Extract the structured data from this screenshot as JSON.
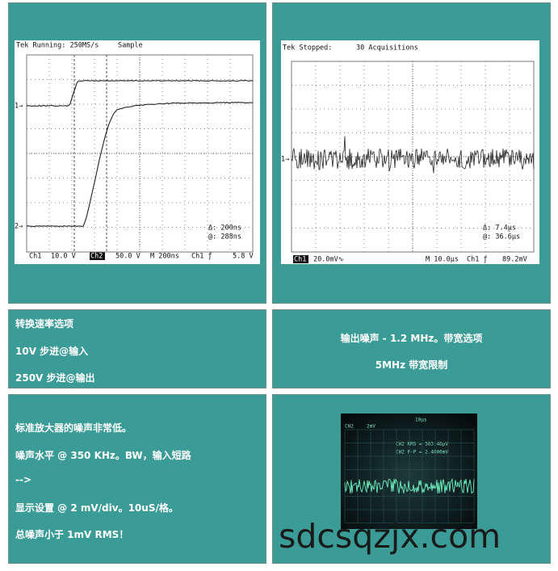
{
  "scope_left": {
    "header": "Tek Running: 250MS/s",
    "mode": "Sample",
    "ch1_marker": "1→",
    "ch2_marker": "2→",
    "delta": "Δ: 200ns",
    "at": "@: 288ns",
    "readout": [
      "Ch1",
      "10.0 V",
      "Ch2",
      "50.0 V",
      "M 200ns",
      "Ch1 ƒ",
      "5.8 V"
    ]
  },
  "scope_right": {
    "header": "Tek Stopped:",
    "acquisitions": "30 Acquisitions",
    "ch1_marker": "1→",
    "delta": "Δ: 7.4µs",
    "at": "@: 36.6µs",
    "readout": [
      "Ch1",
      "20.0mV∿",
      "M 10.0µs",
      "Ch1 ƒ",
      "89.2mV"
    ]
  },
  "slew_rate": {
    "title": "转换速率选项",
    "lines": [
      "10V 步进@输入",
      "250V 步进@输出"
    ]
  },
  "noise_output": {
    "lines": [
      "输出噪声 - 1.2 MHz。带宽选项",
      "5MHz 带宽限制"
    ]
  },
  "noise_amp": {
    "lines": [
      "标准放大器的噪声非常低。",
      "噪声水平 @ 350 KHz。BW，输入短路",
      "-->",
      "显示设置 @ 2 mV/div。10uS/格。",
      "总噪声小于 1mV RMS！"
    ]
  },
  "photo": {
    "readout": [
      "CH2",
      "2mV",
      "10μs",
      "CH2 RMS = 363.46μV",
      "CH2 P-P = 2.4000mV"
    ]
  },
  "watermark": "sdcsqzjx.com"
}
